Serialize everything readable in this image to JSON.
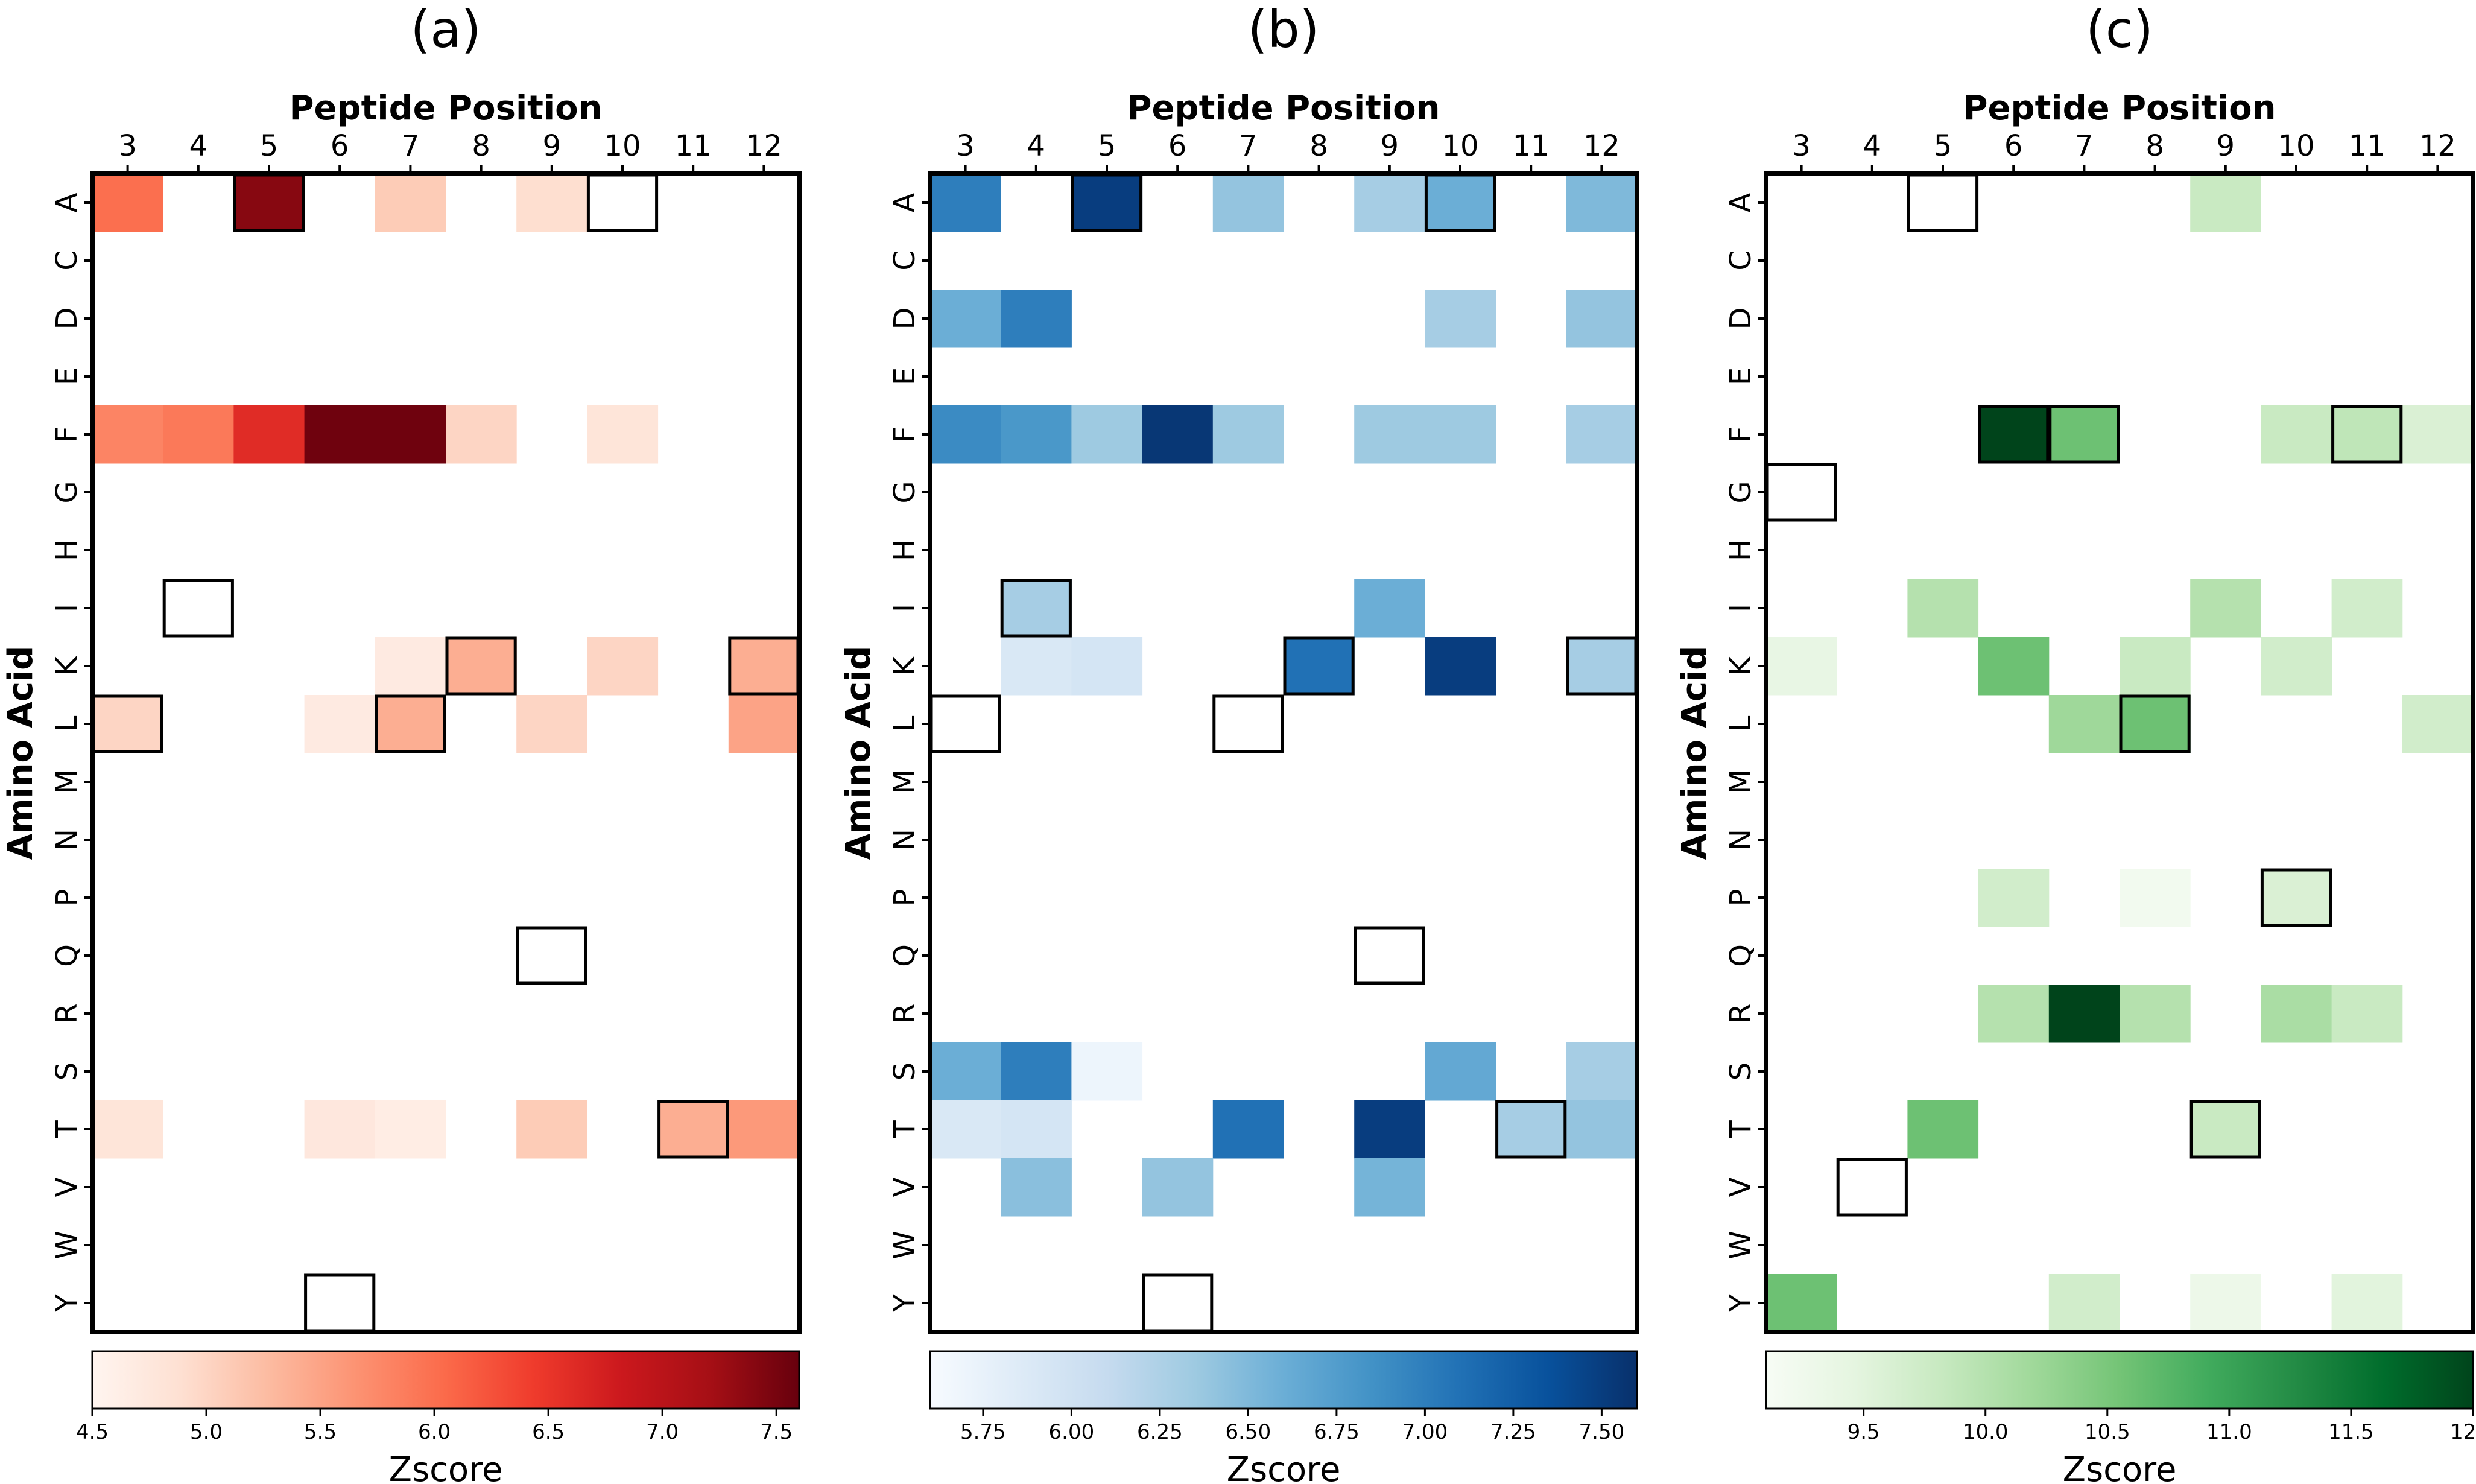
{
  "figure": {
    "description_labels": [
      "(a)",
      "(b)",
      "(c)"
    ]
  },
  "chart_data": [
    {
      "type": "heatmap",
      "panel_label": "(a)",
      "title": "(a)",
      "xlabel": "Peptide Position",
      "ylabel": "Amino Acid",
      "x_categories": [
        "3",
        "4",
        "5",
        "6",
        "7",
        "8",
        "9",
        "10",
        "11",
        "12"
      ],
      "y_categories": [
        "A",
        "C",
        "D",
        "E",
        "F",
        "G",
        "H",
        "I",
        "K",
        "L",
        "M",
        "N",
        "P",
        "Q",
        "R",
        "S",
        "T",
        "V",
        "W",
        "Y"
      ],
      "colormap": "Reds",
      "color_stops": [
        "#fff5f0",
        "#fee0d2",
        "#fcbba1",
        "#fc9272",
        "#fb6a4a",
        "#ef3b2c",
        "#cb181d",
        "#a50f15",
        "#67000d"
      ],
      "colorbar_label": "Zscore",
      "vmin": 4.5,
      "vmax": 7.6,
      "colorbar_ticks": [
        "4.5",
        "5.0",
        "5.5",
        "6.0",
        "6.5",
        "7.0",
        "7.5"
      ],
      "cells": [
        {
          "x": "3",
          "y": "A",
          "value": 6.0
        },
        {
          "x": "5",
          "y": "A",
          "value": 7.4
        },
        {
          "x": "7",
          "y": "A",
          "value": 5.1
        },
        {
          "x": "9",
          "y": "A",
          "value": 4.9
        },
        {
          "x": "3",
          "y": "F",
          "value": 5.8
        },
        {
          "x": "4",
          "y": "F",
          "value": 5.9
        },
        {
          "x": "5",
          "y": "F",
          "value": 6.6
        },
        {
          "x": "6",
          "y": "F",
          "value": 7.55
        },
        {
          "x": "7",
          "y": "F",
          "value": 7.55
        },
        {
          "x": "8",
          "y": "F",
          "value": 5.0
        },
        {
          "x": "10",
          "y": "F",
          "value": 4.8
        },
        {
          "x": "7",
          "y": "K",
          "value": 4.7
        },
        {
          "x": "8",
          "y": "K",
          "value": 5.4
        },
        {
          "x": "10",
          "y": "K",
          "value": 5.0
        },
        {
          "x": "12",
          "y": "K",
          "value": 5.4
        },
        {
          "x": "3",
          "y": "L",
          "value": 5.0
        },
        {
          "x": "6",
          "y": "L",
          "value": 4.7
        },
        {
          "x": "7",
          "y": "L",
          "value": 5.4
        },
        {
          "x": "9",
          "y": "L",
          "value": 5.0
        },
        {
          "x": "12",
          "y": "L",
          "value": 5.5
        },
        {
          "x": "3",
          "y": "T",
          "value": 4.8
        },
        {
          "x": "6",
          "y": "T",
          "value": 4.75
        },
        {
          "x": "7",
          "y": "T",
          "value": 4.65
        },
        {
          "x": "9",
          "y": "T",
          "value": 5.1
        },
        {
          "x": "11",
          "y": "T",
          "value": 5.4
        },
        {
          "x": "12",
          "y": "T",
          "value": 5.6
        }
      ],
      "highlighted_cells": [
        {
          "x": "5",
          "y": "A"
        },
        {
          "x": "10",
          "y": "A"
        },
        {
          "x": "4",
          "y": "I"
        },
        {
          "x": "8",
          "y": "K"
        },
        {
          "x": "12",
          "y": "K"
        },
        {
          "x": "3",
          "y": "L"
        },
        {
          "x": "7",
          "y": "L"
        },
        {
          "x": "9",
          "y": "Q"
        },
        {
          "x": "11",
          "y": "T"
        },
        {
          "x": "6",
          "y": "Y"
        }
      ]
    },
    {
      "type": "heatmap",
      "panel_label": "(b)",
      "title": "(b)",
      "xlabel": "Peptide Position",
      "ylabel": "Amino Acid",
      "x_categories": [
        "3",
        "4",
        "5",
        "6",
        "7",
        "8",
        "9",
        "10",
        "11",
        "12"
      ],
      "y_categories": [
        "A",
        "C",
        "D",
        "E",
        "F",
        "G",
        "H",
        "I",
        "K",
        "L",
        "M",
        "N",
        "P",
        "Q",
        "R",
        "S",
        "T",
        "V",
        "W",
        "Y"
      ],
      "colormap": "Blues",
      "color_stops": [
        "#f7fbff",
        "#deebf7",
        "#c6dbef",
        "#9ecae1",
        "#6baed6",
        "#4292c6",
        "#2171b5",
        "#08519c",
        "#08306b"
      ],
      "colorbar_label": "Zscore",
      "vmin": 5.6,
      "vmax": 7.6,
      "colorbar_ticks": [
        "5.75",
        "6.00",
        "6.25",
        "6.50",
        "6.75",
        "7.00",
        "7.25",
        "7.50"
      ],
      "cells": [
        {
          "x": "3",
          "y": "A",
          "value": 7.0
        },
        {
          "x": "5",
          "y": "A",
          "value": 7.5
        },
        {
          "x": "7",
          "y": "A",
          "value": 6.4
        },
        {
          "x": "9",
          "y": "A",
          "value": 6.3
        },
        {
          "x": "10",
          "y": "A",
          "value": 6.6
        },
        {
          "x": "12",
          "y": "A",
          "value": 6.5
        },
        {
          "x": "3",
          "y": "D",
          "value": 6.6
        },
        {
          "x": "4",
          "y": "D",
          "value": 7.0
        },
        {
          "x": "10",
          "y": "D",
          "value": 6.3
        },
        {
          "x": "12",
          "y": "D",
          "value": 6.4
        },
        {
          "x": "3",
          "y": "F",
          "value": 6.9
        },
        {
          "x": "4",
          "y": "F",
          "value": 6.8
        },
        {
          "x": "5",
          "y": "F",
          "value": 6.35
        },
        {
          "x": "6",
          "y": "F",
          "value": 7.55
        },
        {
          "x": "7",
          "y": "F",
          "value": 6.35
        },
        {
          "x": "9",
          "y": "F",
          "value": 6.35
        },
        {
          "x": "10",
          "y": "F",
          "value": 6.35
        },
        {
          "x": "12",
          "y": "F",
          "value": 6.3
        },
        {
          "x": "4",
          "y": "I",
          "value": 6.3
        },
        {
          "x": "9",
          "y": "I",
          "value": 6.6
        },
        {
          "x": "4",
          "y": "K",
          "value": 5.9
        },
        {
          "x": "5",
          "y": "K",
          "value": 5.95
        },
        {
          "x": "8",
          "y": "K",
          "value": 7.1
        },
        {
          "x": "10",
          "y": "K",
          "value": 7.5
        },
        {
          "x": "12",
          "y": "K",
          "value": 6.3
        },
        {
          "x": "3",
          "y": "S",
          "value": 6.6
        },
        {
          "x": "4",
          "y": "S",
          "value": 7.0
        },
        {
          "x": "5",
          "y": "S",
          "value": 5.7
        },
        {
          "x": "10",
          "y": "S",
          "value": 6.65
        },
        {
          "x": "12",
          "y": "S",
          "value": 6.3
        },
        {
          "x": "3",
          "y": "T",
          "value": 5.9
        },
        {
          "x": "4",
          "y": "T",
          "value": 5.95
        },
        {
          "x": "7",
          "y": "T",
          "value": 7.1
        },
        {
          "x": "9",
          "y": "T",
          "value": 7.5
        },
        {
          "x": "11",
          "y": "T",
          "value": 6.3
        },
        {
          "x": "12",
          "y": "T",
          "value": 6.4
        },
        {
          "x": "4",
          "y": "V",
          "value": 6.45
        },
        {
          "x": "6",
          "y": "V",
          "value": 6.4
        },
        {
          "x": "9",
          "y": "V",
          "value": 6.55
        }
      ],
      "highlighted_cells": [
        {
          "x": "5",
          "y": "A"
        },
        {
          "x": "10",
          "y": "A"
        },
        {
          "x": "4",
          "y": "I"
        },
        {
          "x": "8",
          "y": "K"
        },
        {
          "x": "12",
          "y": "K"
        },
        {
          "x": "3",
          "y": "L"
        },
        {
          "x": "7",
          "y": "L"
        },
        {
          "x": "9",
          "y": "Q"
        },
        {
          "x": "11",
          "y": "T"
        },
        {
          "x": "6",
          "y": "Y"
        }
      ]
    },
    {
      "type": "heatmap",
      "panel_label": "(c)",
      "title": "(c)",
      "xlabel": "Peptide Position",
      "ylabel": "Amino Acid",
      "x_categories": [
        "3",
        "4",
        "5",
        "6",
        "7",
        "8",
        "9",
        "10",
        "11",
        "12"
      ],
      "y_categories": [
        "A",
        "C",
        "D",
        "E",
        "F",
        "G",
        "H",
        "I",
        "K",
        "L",
        "M",
        "N",
        "P",
        "Q",
        "R",
        "S",
        "T",
        "V",
        "W",
        "Y"
      ],
      "colormap": "Greens",
      "color_stops": [
        "#f7fcf5",
        "#e5f5e0",
        "#c7e9c0",
        "#a1d99b",
        "#74c476",
        "#41ab5d",
        "#238b45",
        "#006d2c",
        "#00441b"
      ],
      "colorbar_label": "Zscore",
      "vmin": 9.1,
      "vmax": 12.0,
      "colorbar_ticks": [
        "9.5",
        "10.0",
        "10.5",
        "11.0",
        "11.5",
        "12.0"
      ],
      "cells": [
        {
          "x": "9",
          "y": "A",
          "value": 9.8
        },
        {
          "x": "6",
          "y": "F",
          "value": 12.0
        },
        {
          "x": "7",
          "y": "F",
          "value": 10.6
        },
        {
          "x": "10",
          "y": "F",
          "value": 9.8
        },
        {
          "x": "11",
          "y": "F",
          "value": 9.9
        },
        {
          "x": "12",
          "y": "F",
          "value": 9.6
        },
        {
          "x": "5",
          "y": "I",
          "value": 10.0
        },
        {
          "x": "9",
          "y": "I",
          "value": 10.0
        },
        {
          "x": "11",
          "y": "I",
          "value": 9.7
        },
        {
          "x": "3",
          "y": "K",
          "value": 9.4
        },
        {
          "x": "6",
          "y": "K",
          "value": 10.6
        },
        {
          "x": "8",
          "y": "K",
          "value": 9.8
        },
        {
          "x": "10",
          "y": "K",
          "value": 9.7
        },
        {
          "x": "7",
          "y": "L",
          "value": 10.2
        },
        {
          "x": "8",
          "y": "L",
          "value": 10.6
        },
        {
          "x": "12",
          "y": "L",
          "value": 9.7
        },
        {
          "x": "6",
          "y": "P",
          "value": 9.7
        },
        {
          "x": "8",
          "y": "P",
          "value": 9.2
        },
        {
          "x": "10",
          "y": "P",
          "value": 9.6
        },
        {
          "x": "6",
          "y": "R",
          "value": 10.0
        },
        {
          "x": "7",
          "y": "R",
          "value": 12.0
        },
        {
          "x": "8",
          "y": "R",
          "value": 10.0
        },
        {
          "x": "10",
          "y": "R",
          "value": 10.1
        },
        {
          "x": "11",
          "y": "R",
          "value": 9.8
        },
        {
          "x": "5",
          "y": "T",
          "value": 10.6
        },
        {
          "x": "9",
          "y": "T",
          "value": 9.8
        },
        {
          "x": "3",
          "y": "Y",
          "value": 10.6
        },
        {
          "x": "7",
          "y": "Y",
          "value": 9.7
        },
        {
          "x": "9",
          "y": "Y",
          "value": 9.3
        },
        {
          "x": "11",
          "y": "Y",
          "value": 9.5
        }
      ],
      "highlighted_cells": [
        {
          "x": "5",
          "y": "A"
        },
        {
          "x": "6",
          "y": "F"
        },
        {
          "x": "7",
          "y": "F"
        },
        {
          "x": "11",
          "y": "F"
        },
        {
          "x": "3",
          "y": "G"
        },
        {
          "x": "8",
          "y": "L"
        },
        {
          "x": "10",
          "y": "P"
        },
        {
          "x": "9",
          "y": "T"
        },
        {
          "x": "4",
          "y": "V"
        }
      ]
    }
  ]
}
